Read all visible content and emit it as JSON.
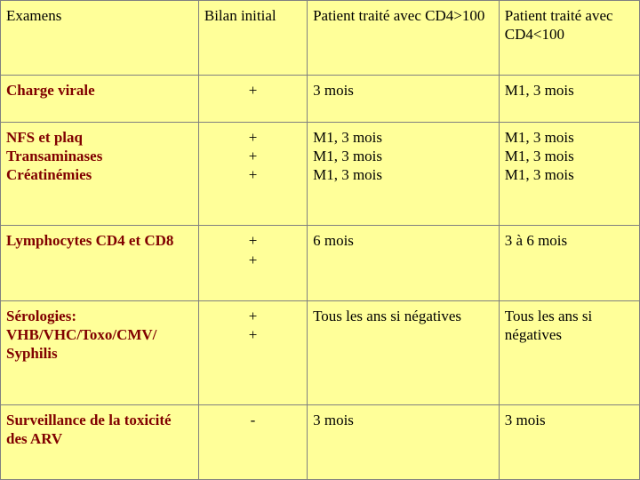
{
  "bg": "#ffff99",
  "header": {
    "c0": "Examens",
    "c1": "Bilan initial",
    "c2": "Patient traité avec CD4>100",
    "c3": "Patient traité avec CD4<100"
  },
  "rows": {
    "r1": {
      "label": "Charge virale",
      "bilan": "+",
      "cd4gt": "3 mois",
      "cd4lt": "M1, 3 mois"
    },
    "r2": {
      "label_l1": "NFS et plaq",
      "label_l2": "Transaminases",
      "label_l3": "Créatinémies",
      "bilan_l1": "+",
      "bilan_l2": "+",
      "bilan_l3": "+",
      "cd4gt_l1": "M1, 3 mois",
      "cd4gt_l2": "M1, 3 mois",
      "cd4gt_l3": "M1, 3 mois",
      "cd4lt_l1": "M1, 3 mois",
      "cd4lt_l2": "M1, 3 mois",
      "cd4lt_l3": "M1, 3 mois"
    },
    "r3": {
      "label": "Lymphocytes CD4 et CD8",
      "bilan_l1": "+",
      "bilan_l2": "+",
      "cd4gt": "6 mois",
      "cd4lt": "3 à 6 mois"
    },
    "r4": {
      "label_l1": "Sérologies:",
      "label_l2": "VHB/VHC/Toxo/CMV/",
      "label_l3": "Syphilis",
      "bilan_l1": "",
      "bilan_l2": "+",
      "bilan_l3": "+",
      "cd4gt": "Tous les ans si négatives",
      "cd4lt": "Tous les ans si négatives"
    },
    "r5": {
      "label": "Surveillance de la toxicité des ARV",
      "bilan": "-",
      "cd4gt": "3 mois",
      "cd4lt": "3 mois"
    }
  }
}
